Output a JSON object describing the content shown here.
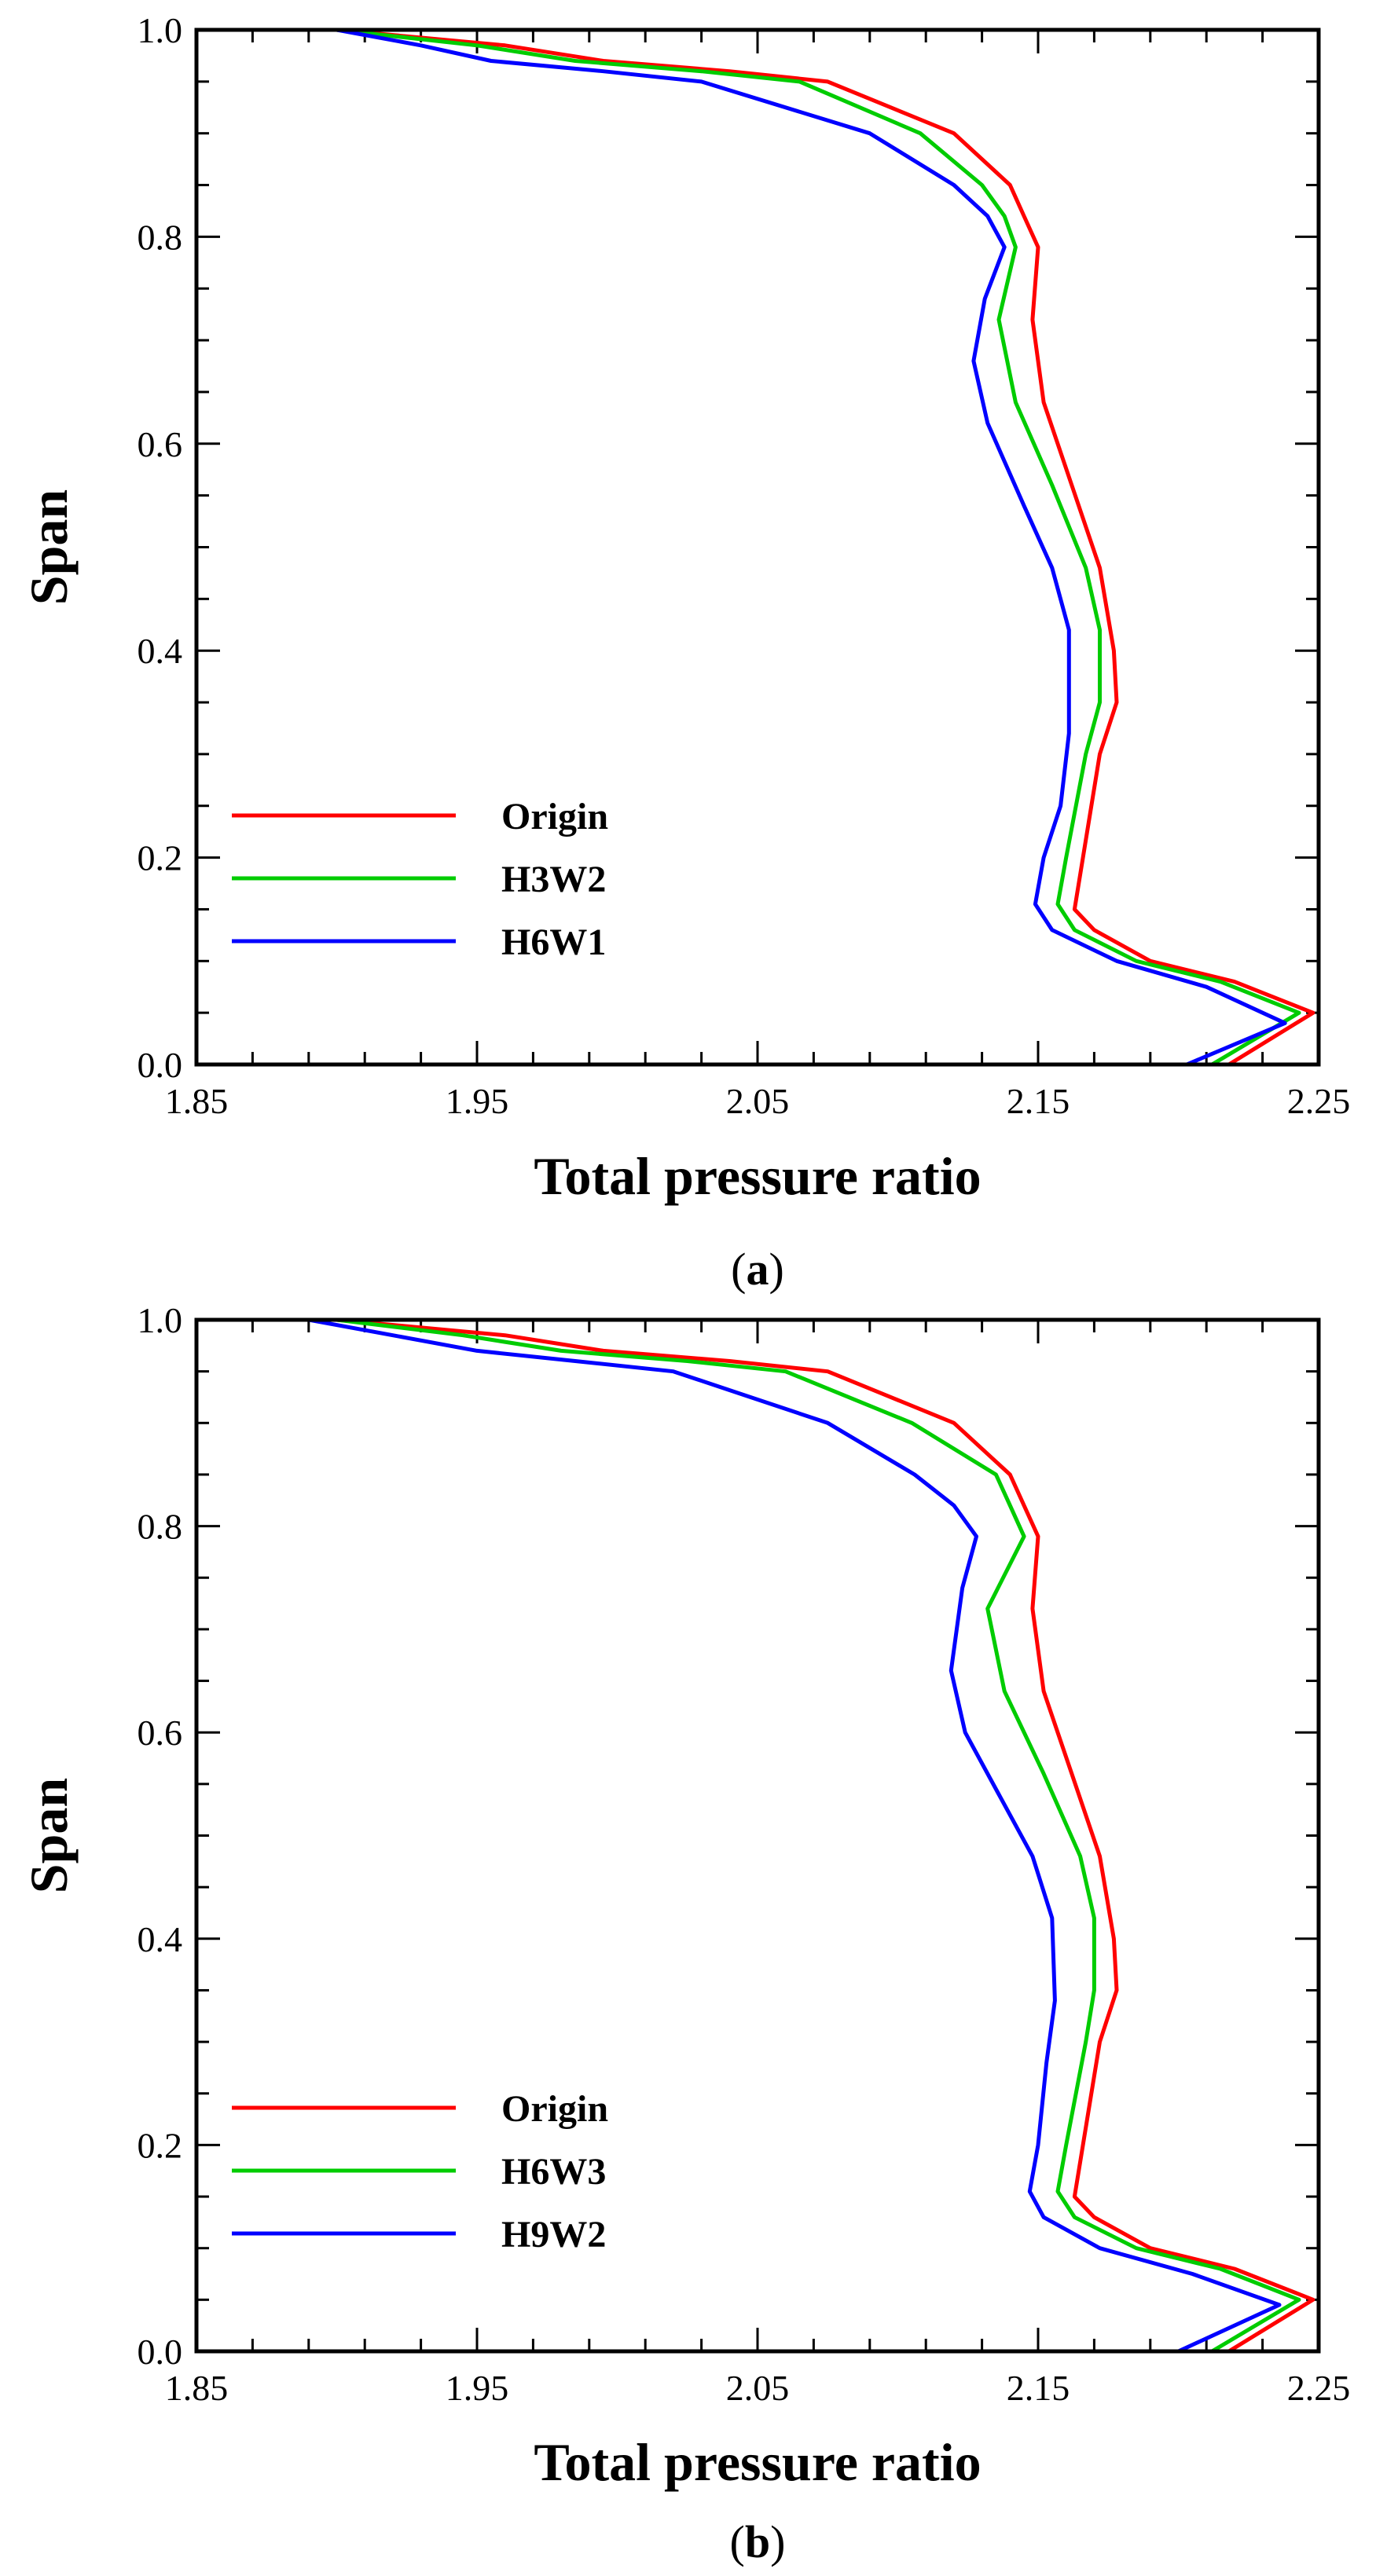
{
  "chart_data": [
    {
      "type": "line",
      "panel_label": "(a)",
      "xlabel": "Total pressure ratio",
      "ylabel": "Span",
      "xlim": [
        1.85,
        2.25
      ],
      "ylim": [
        0.0,
        1.0
      ],
      "xticks": [
        "1.85",
        "1.95",
        "2.05",
        "2.15",
        "2.25"
      ],
      "yticks": [
        "0.0",
        "0.2",
        "0.4",
        "0.6",
        "0.8",
        "1.0"
      ],
      "grid": false,
      "legend_position": "bottom-left",
      "series": [
        {
          "name": "Origin",
          "color": "#ff0000",
          "points": [
            [
              2.218,
              0.0
            ],
            [
              2.248,
              0.05
            ],
            [
              2.22,
              0.08
            ],
            [
              2.19,
              0.1
            ],
            [
              2.17,
              0.13
            ],
            [
              2.163,
              0.15
            ],
            [
              2.166,
              0.2
            ],
            [
              2.172,
              0.3
            ],
            [
              2.178,
              0.35
            ],
            [
              2.177,
              0.4
            ],
            [
              2.172,
              0.48
            ],
            [
              2.162,
              0.56
            ],
            [
              2.152,
              0.64
            ],
            [
              2.148,
              0.72
            ],
            [
              2.15,
              0.79
            ],
            [
              2.145,
              0.82
            ],
            [
              2.14,
              0.85
            ],
            [
              2.12,
              0.9
            ],
            [
              2.075,
              0.95
            ],
            [
              2.04,
              0.96
            ],
            [
              1.995,
              0.97
            ],
            [
              1.96,
              0.985
            ],
            [
              1.9,
              1.0
            ]
          ]
        },
        {
          "name": "H3W2",
          "color": "#00cc00",
          "points": [
            [
              2.212,
              0.0
            ],
            [
              2.243,
              0.05
            ],
            [
              2.215,
              0.08
            ],
            [
              2.185,
              0.1
            ],
            [
              2.163,
              0.13
            ],
            [
              2.157,
              0.155
            ],
            [
              2.16,
              0.2
            ],
            [
              2.167,
              0.3
            ],
            [
              2.172,
              0.35
            ],
            [
              2.172,
              0.42
            ],
            [
              2.167,
              0.48
            ],
            [
              2.155,
              0.56
            ],
            [
              2.142,
              0.64
            ],
            [
              2.136,
              0.72
            ],
            [
              2.142,
              0.79
            ],
            [
              2.138,
              0.82
            ],
            [
              2.13,
              0.85
            ],
            [
              2.108,
              0.9
            ],
            [
              2.065,
              0.95
            ],
            [
              2.03,
              0.96
            ],
            [
              1.985,
              0.97
            ],
            [
              1.95,
              0.985
            ],
            [
              1.9,
              1.0
            ]
          ]
        },
        {
          "name": "H6W1",
          "color": "#0000ff",
          "points": [
            [
              2.203,
              0.0
            ],
            [
              2.238,
              0.04
            ],
            [
              2.21,
              0.075
            ],
            [
              2.178,
              0.1
            ],
            [
              2.155,
              0.13
            ],
            [
              2.149,
              0.155
            ],
            [
              2.152,
              0.2
            ],
            [
              2.158,
              0.25
            ],
            [
              2.161,
              0.32
            ],
            [
              2.161,
              0.42
            ],
            [
              2.155,
              0.48
            ],
            [
              2.145,
              0.54
            ],
            [
              2.132,
              0.62
            ],
            [
              2.127,
              0.68
            ],
            [
              2.131,
              0.74
            ],
            [
              2.138,
              0.79
            ],
            [
              2.132,
              0.82
            ],
            [
              2.12,
              0.85
            ],
            [
              2.09,
              0.9
            ],
            [
              2.03,
              0.95
            ],
            [
              1.995,
              0.96
            ],
            [
              1.955,
              0.97
            ],
            [
              1.93,
              0.985
            ],
            [
              1.9,
              1.0
            ]
          ]
        }
      ]
    },
    {
      "type": "line",
      "panel_label": "(b)",
      "xlabel": "Total pressure ratio",
      "ylabel": "Span",
      "xlim": [
        1.85,
        2.25
      ],
      "ylim": [
        0.0,
        1.0
      ],
      "xticks": [
        "1.85",
        "1.95",
        "2.05",
        "2.15",
        "2.25"
      ],
      "yticks": [
        "0.0",
        "0.2",
        "0.4",
        "0.6",
        "0.8",
        "1.0"
      ],
      "grid": false,
      "legend_position": "bottom-left",
      "series": [
        {
          "name": "Origin",
          "color": "#ff0000",
          "points": [
            [
              2.218,
              0.0
            ],
            [
              2.248,
              0.05
            ],
            [
              2.22,
              0.08
            ],
            [
              2.19,
              0.1
            ],
            [
              2.17,
              0.13
            ],
            [
              2.163,
              0.15
            ],
            [
              2.166,
              0.2
            ],
            [
              2.172,
              0.3
            ],
            [
              2.178,
              0.35
            ],
            [
              2.177,
              0.4
            ],
            [
              2.172,
              0.48
            ],
            [
              2.162,
              0.56
            ],
            [
              2.152,
              0.64
            ],
            [
              2.148,
              0.72
            ],
            [
              2.15,
              0.79
            ],
            [
              2.145,
              0.82
            ],
            [
              2.14,
              0.85
            ],
            [
              2.12,
              0.9
            ],
            [
              2.075,
              0.95
            ],
            [
              2.04,
              0.96
            ],
            [
              1.995,
              0.97
            ],
            [
              1.96,
              0.985
            ],
            [
              1.9,
              1.0
            ]
          ]
        },
        {
          "name": "H6W3",
          "color": "#00cc00",
          "points": [
            [
              2.212,
              0.0
            ],
            [
              2.243,
              0.05
            ],
            [
              2.215,
              0.08
            ],
            [
              2.185,
              0.1
            ],
            [
              2.163,
              0.13
            ],
            [
              2.157,
              0.155
            ],
            [
              2.16,
              0.2
            ],
            [
              2.167,
              0.3
            ],
            [
              2.17,
              0.35
            ],
            [
              2.17,
              0.42
            ],
            [
              2.165,
              0.48
            ],
            [
              2.152,
              0.56
            ],
            [
              2.138,
              0.64
            ],
            [
              2.132,
              0.72
            ],
            [
              2.145,
              0.79
            ],
            [
              2.14,
              0.82
            ],
            [
              2.135,
              0.85
            ],
            [
              2.105,
              0.9
            ],
            [
              2.06,
              0.95
            ],
            [
              2.025,
              0.96
            ],
            [
              1.98,
              0.97
            ],
            [
              1.945,
              0.985
            ],
            [
              1.9,
              1.0
            ]
          ]
        },
        {
          "name": "H9W2",
          "color": "#0000ff",
          "points": [
            [
              2.2,
              0.0
            ],
            [
              2.236,
              0.045
            ],
            [
              2.205,
              0.075
            ],
            [
              2.172,
              0.1
            ],
            [
              2.152,
              0.13
            ],
            [
              2.147,
              0.155
            ],
            [
              2.15,
              0.2
            ],
            [
              2.153,
              0.28
            ],
            [
              2.156,
              0.34
            ],
            [
              2.155,
              0.42
            ],
            [
              2.148,
              0.48
            ],
            [
              2.136,
              0.54
            ],
            [
              2.124,
              0.6
            ],
            [
              2.119,
              0.66
            ],
            [
              2.123,
              0.74
            ],
            [
              2.128,
              0.79
            ],
            [
              2.12,
              0.82
            ],
            [
              2.106,
              0.85
            ],
            [
              2.075,
              0.9
            ],
            [
              2.02,
              0.95
            ],
            [
              1.985,
              0.96
            ],
            [
              1.95,
              0.97
            ],
            [
              1.92,
              0.985
            ],
            [
              1.89,
              1.0
            ]
          ]
        }
      ]
    }
  ]
}
